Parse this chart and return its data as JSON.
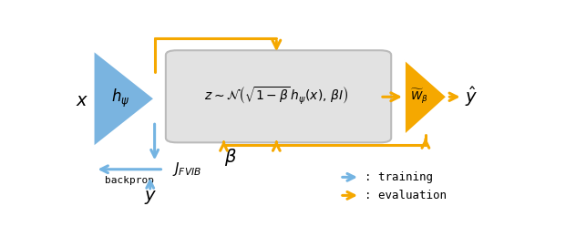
{
  "blue_color": "#7ab4e0",
  "orange_color": "#f5a800",
  "gray_box_color": "#e2e2e2",
  "gray_box_edge": "#bbbbbb",
  "bg_color": "#ffffff",
  "text_color": "#000000",
  "blue_arrow_color": "#74b4e2",
  "x_label": "$x$",
  "h_label": "$h_{\\psi}$",
  "z_label": "$z \\sim \\mathcal{N}\\left(\\sqrt{1-\\beta}\\,h_{\\psi}(x),\\,\\beta I\\right)$",
  "w_label": "$\\widetilde{W}_{\\beta}$",
  "yhat_label": "$\\hat{y}$",
  "j_label": "$J_{FVIB}$",
  "beta_label": "$\\beta$",
  "y_label": "$y$",
  "backprop_label": "backprop",
  "training_label": ": training",
  "evaluation_label": ": evaluation",
  "lw": 2.2
}
